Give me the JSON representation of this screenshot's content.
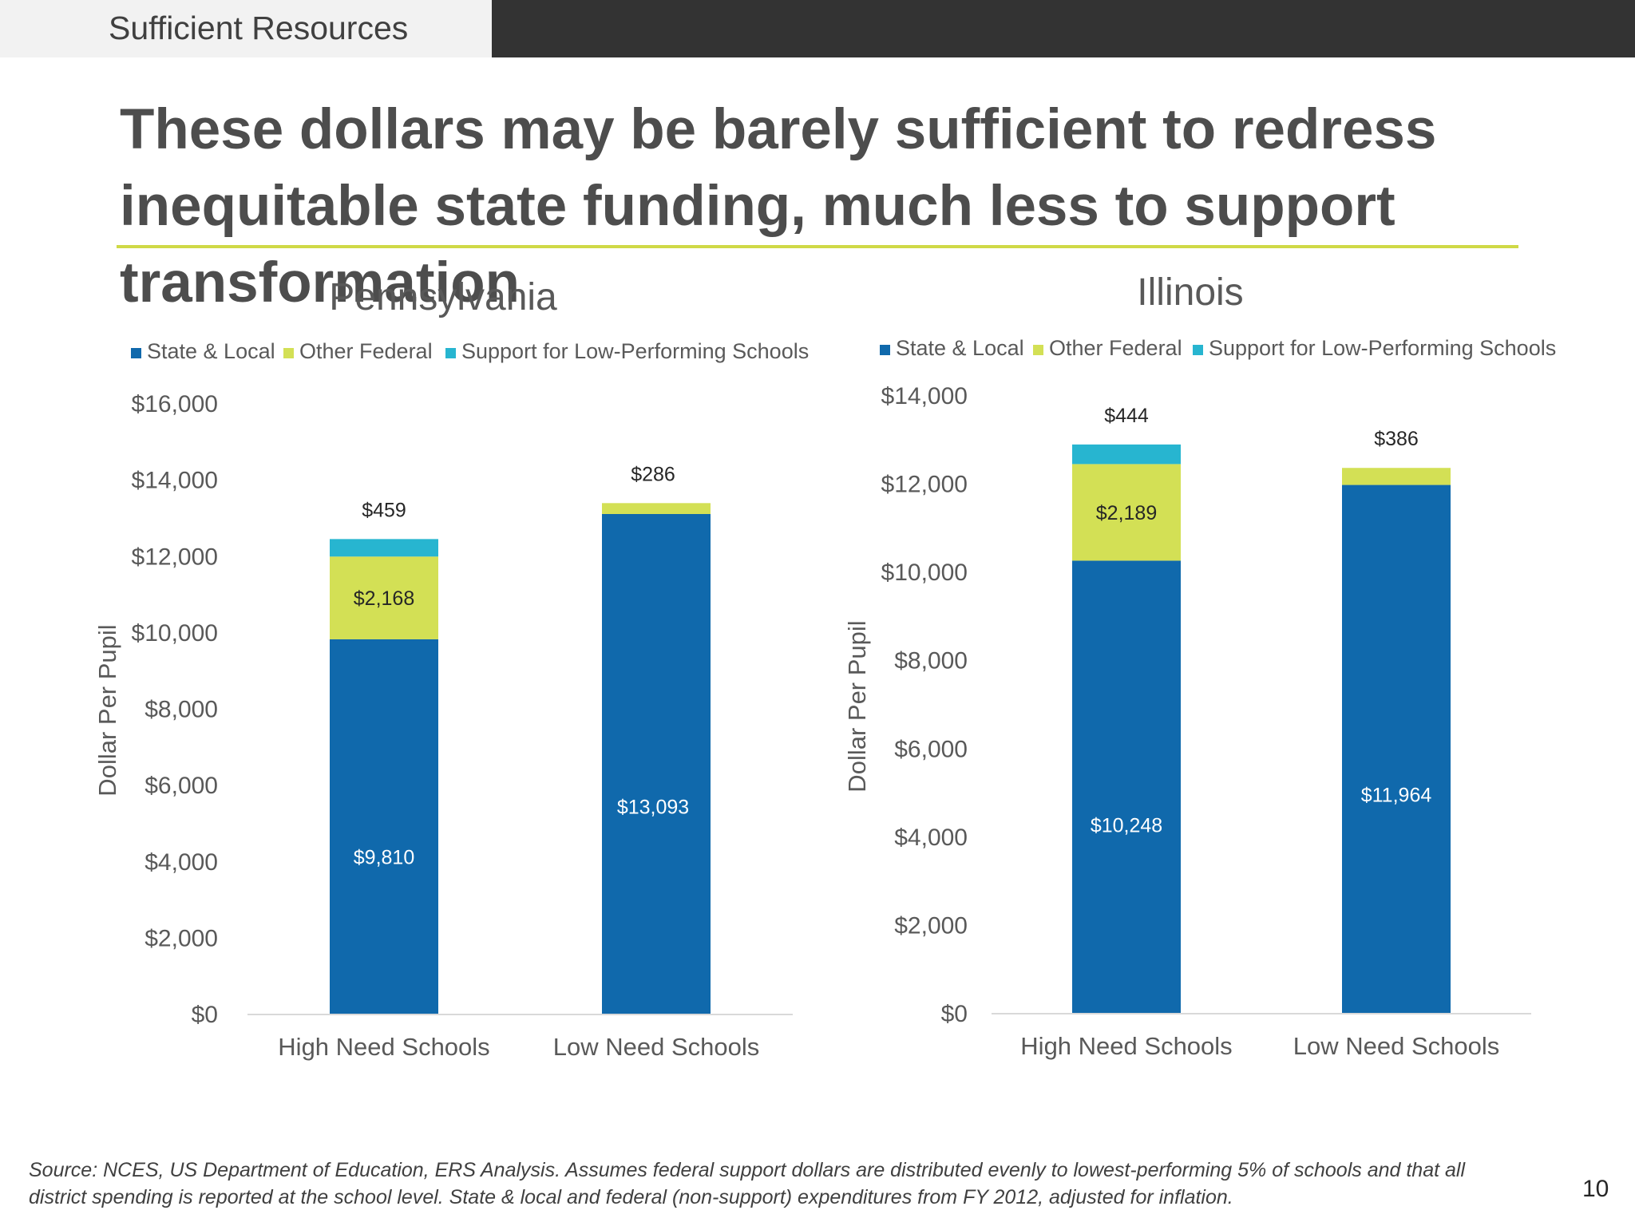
{
  "header": {
    "section_tab": "Sufficient Resources"
  },
  "headline": "These dollars may be barely sufficient to redress inequitable state funding, much less to support transformation",
  "colors": {
    "state_local": "#1069ac",
    "other_federal": "#d3e055",
    "support": "#27b5d0",
    "accent_rule": "#cfd946"
  },
  "chart_data": [
    {
      "type": "bar",
      "stacked": true,
      "title": "Pennsylvania",
      "ylabel": "Dollar Per Pupil",
      "xlabel": "",
      "categories": [
        "High Need Schools",
        "Low Need Schools"
      ],
      "series": [
        {
          "name": "State & Local",
          "color_key": "state_local",
          "values": [
            9810,
            13093
          ],
          "labels": [
            "$9,810",
            "$13,093"
          ]
        },
        {
          "name": "Other Federal",
          "color_key": "other_federal",
          "values": [
            2168,
            286
          ],
          "labels": [
            "$2,168",
            "$286"
          ]
        },
        {
          "name": "Support for Low-Performing Schools",
          "color_key": "support",
          "values": [
            459,
            0
          ],
          "labels": [
            "$459",
            ""
          ]
        }
      ],
      "ylim": [
        0,
        16000
      ],
      "yticks": [
        0,
        2000,
        4000,
        6000,
        8000,
        10000,
        12000,
        14000,
        16000
      ],
      "ytick_labels": [
        "$0",
        "$2,000",
        "$4,000",
        "$6,000",
        "$8,000",
        "$10,000",
        "$12,000",
        "$14,000",
        "$16,000"
      ],
      "legend": "top",
      "grid": false
    },
    {
      "type": "bar",
      "stacked": true,
      "title": "Illinois",
      "ylabel": "Dollar Per Pupil",
      "xlabel": "",
      "categories": [
        "High Need Schools",
        "Low Need Schools"
      ],
      "series": [
        {
          "name": "State & Local",
          "color_key": "state_local",
          "values": [
            10248,
            11964
          ],
          "labels": [
            "$10,248",
            "$11,964"
          ]
        },
        {
          "name": "Other Federal",
          "color_key": "other_federal",
          "values": [
            2189,
            386
          ],
          "labels": [
            "$2,189",
            "$386"
          ]
        },
        {
          "name": "Support for Low-Performing Schools",
          "color_key": "support",
          "values": [
            444,
            0
          ],
          "labels": [
            "$444",
            ""
          ]
        }
      ],
      "ylim": [
        0,
        14000
      ],
      "yticks": [
        0,
        2000,
        4000,
        6000,
        8000,
        10000,
        12000,
        14000
      ],
      "ytick_labels": [
        "$0",
        "$2,000",
        "$4,000",
        "$6,000",
        "$8,000",
        "$10,000",
        "$12,000",
        "$14,000"
      ],
      "legend": "top",
      "grid": false
    }
  ],
  "source_note": "Source: NCES, US Department of Education, ERS Analysis. Assumes federal support dollars are distributed evenly to lowest-performing 5% of schools and that all district spending is reported at the school level. State & local and federal (non-support) expenditures from FY 2012, adjusted for inflation.",
  "page_number": "10"
}
